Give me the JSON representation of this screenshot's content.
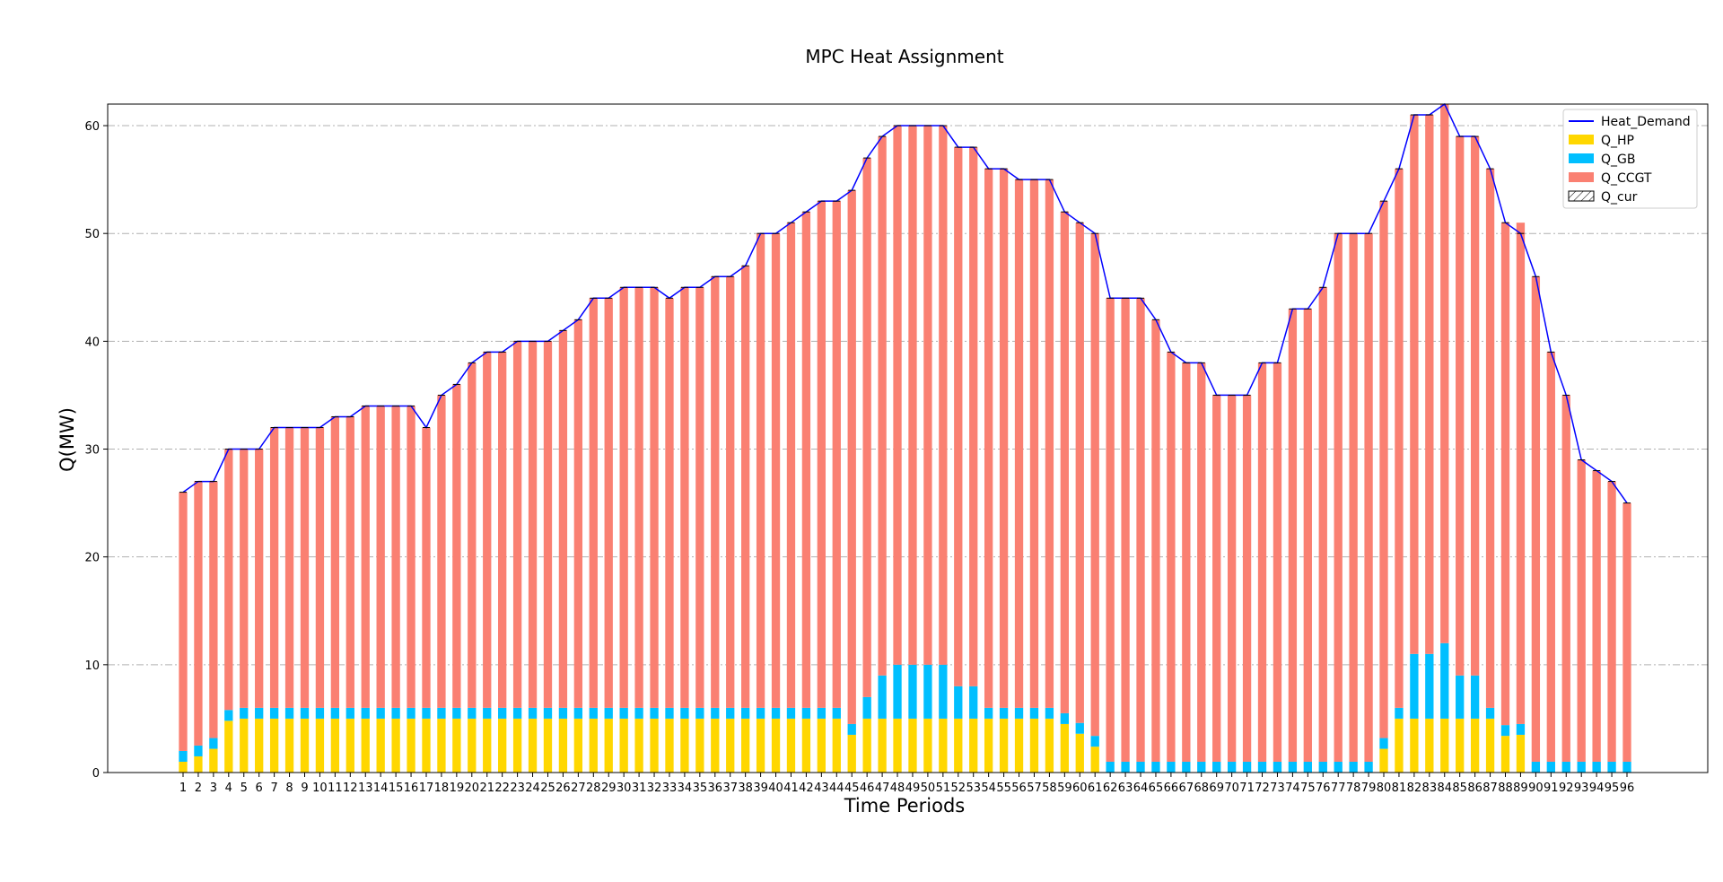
{
  "chart_data": {
    "type": "bar",
    "title": "MPC Heat Assignment",
    "xlabel": "Time Periods",
    "ylabel": "Q(MW)",
    "ylim": [
      0,
      62
    ],
    "yticks": [
      0,
      10,
      20,
      30,
      40,
      50,
      60
    ],
    "grid": "horizontal dash-dot",
    "legend_position": "top-right",
    "categories": [
      "1",
      "2",
      "3",
      "4",
      "5",
      "6",
      "7",
      "8",
      "9",
      "10",
      "11",
      "12",
      "13",
      "14",
      "15",
      "16",
      "17",
      "18",
      "19",
      "20",
      "21",
      "22",
      "23",
      "24",
      "25",
      "26",
      "27",
      "28",
      "29",
      "30",
      "31",
      "32",
      "33",
      "34",
      "35",
      "36",
      "37",
      "38",
      "39",
      "40",
      "41",
      "42",
      "43",
      "44",
      "45",
      "46",
      "47",
      "48",
      "49",
      "50",
      "51",
      "52",
      "53",
      "54",
      "55",
      "56",
      "57",
      "58",
      "59",
      "60",
      "61",
      "62",
      "63",
      "64",
      "65",
      "66",
      "67",
      "68",
      "69",
      "70",
      "71",
      "72",
      "73",
      "74",
      "75",
      "76",
      "77",
      "78",
      "79",
      "80",
      "81",
      "82",
      "83",
      "84",
      "85",
      "86",
      "87",
      "88",
      "89",
      "90",
      "91",
      "92",
      "93",
      "94",
      "95",
      "96"
    ],
    "series": [
      {
        "name": "Q_HP",
        "color": "#FFD700",
        "kind": "bar",
        "values": [
          1,
          1.5,
          2.2,
          4.8,
          5,
          5,
          5,
          5,
          5,
          5,
          5,
          5,
          5,
          5,
          5,
          5,
          5,
          5,
          5,
          5,
          5,
          5,
          5,
          5,
          5,
          5,
          5,
          5,
          5,
          5,
          5,
          5,
          5,
          5,
          5,
          5,
          5,
          5,
          5,
          5,
          5,
          5,
          5,
          5,
          3.5,
          5,
          5,
          5,
          5,
          5,
          5,
          5,
          5,
          5,
          5,
          5,
          5,
          5,
          4.5,
          3.6,
          2.4,
          0,
          0,
          0,
          0,
          0,
          0,
          0,
          0,
          0,
          0,
          0,
          0,
          0,
          0,
          0,
          0,
          0,
          0,
          2.2,
          5,
          5,
          5,
          5,
          5,
          5,
          5,
          3.4,
          3.5,
          0,
          0,
          0,
          0,
          0,
          0,
          0
        ]
      },
      {
        "name": "Q_GB",
        "color": "#00BFFF",
        "kind": "bar",
        "values": [
          1,
          1,
          1,
          1,
          1,
          1,
          1,
          1,
          1,
          1,
          1,
          1,
          1,
          1,
          1,
          1,
          1,
          1,
          1,
          1,
          1,
          1,
          1,
          1,
          1,
          1,
          1,
          1,
          1,
          1,
          1,
          1,
          1,
          1,
          1,
          1,
          1,
          1,
          1,
          1,
          1,
          1,
          1,
          1,
          1,
          2,
          4,
          5,
          5,
          5,
          5,
          3,
          3,
          1,
          1,
          1,
          1,
          1,
          1,
          1,
          1,
          1,
          1,
          1,
          1,
          1,
          1,
          1,
          1,
          1,
          1,
          1,
          1,
          1,
          1,
          1,
          1,
          1,
          1,
          1,
          1,
          6,
          6,
          7,
          4,
          4,
          1,
          1,
          1,
          1,
          1,
          1,
          1,
          1,
          1,
          1
        ]
      },
      {
        "name": "Q_CCGT",
        "color": "#FA8072",
        "kind": "bar",
        "values": [
          24,
          24.5,
          23.8,
          24.2,
          24,
          24,
          26,
          26,
          26,
          26,
          27,
          27,
          28,
          28,
          28,
          28,
          26,
          29,
          30,
          32,
          33,
          33,
          34,
          34,
          34,
          35,
          36,
          38,
          38,
          39,
          39,
          39,
          38,
          39,
          39,
          40,
          40,
          41,
          44,
          44,
          45,
          46,
          47,
          47,
          49.5,
          50,
          50,
          50,
          50,
          50,
          50,
          50,
          50,
          50,
          50,
          49,
          49,
          49,
          46.5,
          46.4,
          46.6,
          43,
          43,
          43,
          41,
          38,
          37,
          37,
          34,
          34,
          34,
          37,
          37,
          42,
          42,
          44,
          49,
          49,
          49,
          49.8,
          50,
          50,
          50,
          50,
          50,
          50,
          50,
          46.6,
          46.5,
          45,
          38,
          34,
          28,
          27,
          26,
          24
        ]
      },
      {
        "name": "Heat_Demand",
        "color": "#0000FF",
        "kind": "line",
        "values": [
          26,
          27,
          27,
          30,
          30,
          30,
          32,
          32,
          32,
          32,
          33,
          33,
          34,
          34,
          34,
          34,
          32,
          35,
          36,
          38,
          39,
          39,
          40,
          40,
          40,
          41,
          42,
          44,
          44,
          45,
          45,
          45,
          44,
          45,
          45,
          46,
          46,
          47,
          50,
          50,
          51,
          52,
          53,
          53,
          54,
          57,
          59,
          60,
          60,
          60,
          60,
          58,
          58,
          56,
          56,
          55,
          55,
          55,
          52,
          51,
          50,
          44,
          44,
          44,
          42,
          39,
          38,
          38,
          35,
          35,
          35,
          38,
          38,
          43,
          43,
          45,
          50,
          50,
          50,
          53,
          56,
          61,
          61,
          62,
          59,
          59,
          56,
          51,
          50,
          46,
          39,
          35,
          29,
          28,
          27,
          25
        ]
      },
      {
        "name": "Q_cur",
        "color": "#FFFFFF",
        "kind": "bar",
        "values": [
          0,
          0,
          0,
          0,
          0,
          0,
          0,
          0,
          0,
          0,
          0,
          0,
          0,
          0,
          0,
          0,
          0,
          0,
          0,
          0,
          0,
          0,
          0,
          0,
          0,
          0,
          0,
          0,
          0,
          0,
          0,
          0,
          0,
          0,
          0,
          0,
          0,
          0,
          0,
          0,
          0,
          0,
          0,
          0,
          0,
          0,
          0,
          0,
          0,
          0,
          0,
          0,
          0,
          0,
          0,
          0,
          0,
          0,
          0,
          0,
          0,
          0,
          0,
          0,
          0,
          0,
          0,
          0,
          0,
          0,
          0,
          0,
          0,
          0,
          0,
          0,
          0,
          0,
          0,
          0,
          0,
          0,
          0,
          0,
          0,
          0,
          0,
          0,
          0,
          0,
          0,
          0,
          0,
          0,
          0,
          0
        ]
      }
    ]
  }
}
